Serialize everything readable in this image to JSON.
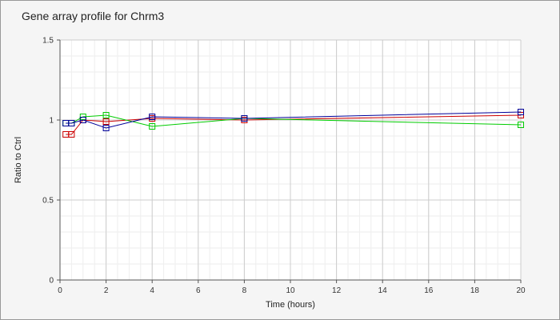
{
  "chart_data": {
    "type": "line",
    "title": "Gene array profile for Chrm3",
    "xlabel": "Time (hours)",
    "ylabel": "Ratio to Ctrl",
    "xlim": [
      0,
      20
    ],
    "ylim": [
      0,
      1.5
    ],
    "x_ticks": [
      0,
      2,
      4,
      6,
      8,
      10,
      12,
      14,
      16,
      18,
      20
    ],
    "y_ticks": [
      0,
      0.5,
      1,
      1.5
    ],
    "y_tick_labels": [
      "0",
      "0.5",
      "1",
      "1.5"
    ],
    "grid": true,
    "legend": "none",
    "series": [
      {
        "color": "#cc0000",
        "x": [
          0.25,
          0.5,
          1,
          2,
          4,
          8,
          20
        ],
        "y": [
          0.91,
          0.91,
          1.0,
          0.99,
          1.01,
          1.0,
          1.03
        ]
      },
      {
        "color": "#00cc00",
        "x": [
          0.25,
          0.5,
          1,
          2,
          4,
          8,
          20
        ],
        "y": [
          0.98,
          0.98,
          1.02,
          1.03,
          0.96,
          1.01,
          0.97
        ]
      },
      {
        "color": "#000099",
        "x": [
          0.25,
          0.5,
          1,
          2,
          4,
          8,
          20
        ],
        "y": [
          0.98,
          0.98,
          1.0,
          0.95,
          1.02,
          1.01,
          1.05
        ]
      }
    ]
  }
}
